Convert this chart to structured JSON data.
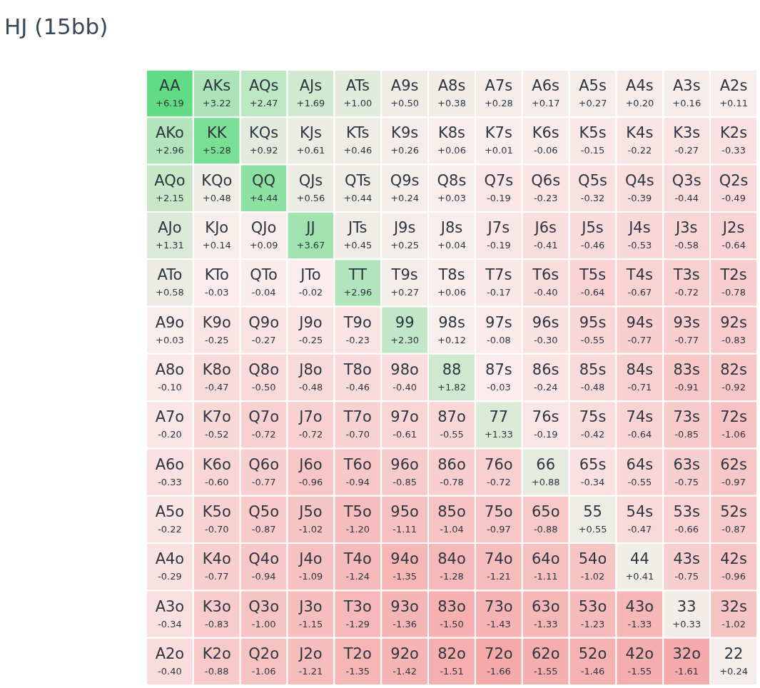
{
  "chart_data": {
    "type": "heatmap",
    "title": "HJ (15bb)",
    "categories": [
      null,
      null,
      null,
      null,
      null,
      null,
      null,
      null,
      null,
      null,
      null,
      null,
      null
    ],
    "y_categories": [
      null,
      null,
      null,
      null,
      null,
      null,
      null,
      null,
      null,
      null,
      null,
      null,
      null
    ],
    "cells": [
      [
        6.19,
        3.22,
        2.47,
        1.69,
        1.0,
        0.5,
        0.38,
        0.28,
        0.17,
        0.27,
        0.2,
        0.16,
        0.11
      ],
      [
        2.96,
        5.28,
        0.92,
        0.61,
        0.46,
        0.26,
        0.06,
        0.01,
        -0.06,
        -0.15,
        -0.22,
        -0.27,
        -0.33
      ],
      [
        2.15,
        0.48,
        4.44,
        0.56,
        0.44,
        0.24,
        0.03,
        -0.19,
        -0.23,
        -0.32,
        -0.39,
        -0.44,
        -0.49
      ],
      [
        1.31,
        0.14,
        0.09,
        3.67,
        0.45,
        0.25,
        0.04,
        -0.19,
        -0.41,
        -0.46,
        -0.53,
        -0.58,
        -0.64
      ],
      [
        0.58,
        -0.03,
        -0.04,
        -0.02,
        2.96,
        0.27,
        0.06,
        -0.17,
        -0.4,
        -0.64,
        -0.67,
        -0.72,
        -0.78
      ],
      [
        0.03,
        -0.25,
        -0.27,
        -0.25,
        -0.23,
        2.3,
        0.12,
        -0.08,
        -0.3,
        -0.55,
        -0.77,
        -0.77,
        -0.83
      ],
      [
        -0.1,
        -0.47,
        -0.5,
        -0.48,
        -0.46,
        -0.4,
        1.82,
        -0.03,
        -0.24,
        -0.48,
        -0.71,
        -0.91,
        -0.92
      ],
      [
        -0.2,
        -0.52,
        -0.72,
        -0.72,
        -0.7,
        -0.61,
        -0.55,
        1.33,
        -0.19,
        -0.42,
        -0.64,
        -0.85,
        -1.06
      ],
      [
        -0.33,
        -0.6,
        -0.77,
        -0.96,
        -0.94,
        -0.85,
        -0.78,
        -0.72,
        0.88,
        -0.34,
        -0.55,
        -0.75,
        -0.97
      ],
      [
        -0.22,
        -0.7,
        -0.87,
        -1.02,
        -1.2,
        -1.11,
        -1.04,
        -0.97,
        -0.88,
        0.55,
        -0.47,
        -0.66,
        -0.87
      ],
      [
        -0.29,
        -0.77,
        -0.94,
        -1.09,
        -1.24,
        -1.35,
        -1.28,
        -1.21,
        -1.11,
        -1.02,
        0.41,
        -0.75,
        -0.96
      ],
      [
        -0.34,
        -0.83,
        -1.0,
        -1.15,
        -1.29,
        -1.36,
        -1.5,
        -1.43,
        -1.33,
        -1.23,
        -1.33,
        0.33,
        -1.02
      ],
      [
        -0.4,
        -0.88,
        -1.06,
        -1.21,
        -1.35,
        -1.42,
        -1.51,
        -1.66,
        -1.55,
        -1.46,
        -1.55,
        -1.61,
        0.24
      ]
    ],
    "cell_labels": [
      [
        "+6.19",
        "+3.22",
        "+2.47",
        "+1.69",
        "+1.00",
        "+0.50",
        "+0.38",
        "+0.28",
        "+0.17",
        "+0.27",
        "+0.20",
        "+0.16",
        "+0.11"
      ],
      [
        "+2.96",
        "+5.28",
        "+0.92",
        "+0.61",
        "+0.46",
        "+0.26",
        "+0.06",
        "+0.01",
        "-0.06",
        "-0.15",
        "-0.22",
        "-0.27",
        "-0.33"
      ],
      [
        "+2.15",
        "+0.48",
        "+4.44",
        "+0.56",
        "+0.44",
        "+0.24",
        "+0.03",
        "-0.19",
        "-0.23",
        "-0.32",
        "-0.39",
        "-0.44",
        "-0.49"
      ],
      [
        "+1.31",
        "+0.14",
        "+0.09",
        "+3.67",
        "+0.45",
        "+0.25",
        "+0.04",
        "-0.19",
        "-0.41",
        "-0.46",
        "-0.53",
        "-0.58",
        "-0.64"
      ],
      [
        "+0.58",
        "-0.03",
        "-0.04",
        "-0.02",
        "+2.96",
        "+0.27",
        "+0.06",
        "-0.17",
        "-0.40",
        "-0.64",
        "-0.67",
        "-0.72",
        "-0.78"
      ],
      [
        "+0.03",
        "-0.25",
        "-0.27",
        "-0.25",
        "-0.23",
        "+2.30",
        "+0.12",
        "-0.08",
        "-0.30",
        "-0.55",
        "-0.77",
        "-0.77",
        "-0.83"
      ],
      [
        "-0.10",
        "-0.47",
        "-0.50",
        "-0.48",
        "-0.46",
        "-0.40",
        "+1.82",
        "-0.03",
        "-0.24",
        "-0.48",
        "-0.71",
        "-0.91",
        "-0.92"
      ],
      [
        "-0.20",
        "-0.52",
        "-0.72",
        "-0.72",
        "-0.70",
        "-0.61",
        "-0.55",
        "+1.33",
        "-0.19",
        "-0.42",
        "-0.64",
        "-0.85",
        "-1.06"
      ],
      [
        "-0.33",
        "-0.60",
        "-0.77",
        "-0.96",
        "-0.94",
        "-0.85",
        "-0.78",
        "-0.72",
        "+0.88",
        "-0.34",
        "-0.55",
        "-0.75",
        "-0.97"
      ],
      [
        "-0.22",
        "-0.70",
        "-0.87",
        "-1.02",
        "-1.20",
        "-1.11",
        "-1.04",
        "-0.97",
        "-0.88",
        "+0.55",
        "-0.47",
        "-0.66",
        "-0.87"
      ],
      [
        "-0.29",
        "-0.77",
        "-0.94",
        "-1.09",
        "-1.24",
        "-1.35",
        "-1.28",
        "-1.21",
        "-1.11",
        "-1.02",
        "+0.41",
        "-0.75",
        "-0.96"
      ],
      [
        "-0.34",
        "-0.83",
        "-1.00",
        "-1.15",
        "-1.29",
        "-1.36",
        "-1.50",
        "-1.43",
        "-1.33",
        "-1.23",
        "-1.33",
        "+0.33",
        "-1.02"
      ],
      [
        "-0.40",
        "-0.88",
        "-1.06",
        "-1.21",
        "-1.35",
        "-1.42",
        "-1.51",
        "-1.66",
        "-1.55",
        "-1.46",
        "-1.55",
        "-1.61",
        "+0.24"
      ]
    ],
    "annotations": [
      "AA",
      "AKs",
      "AQs",
      "AJs",
      "ATs",
      "A9s",
      "A8s",
      "A7s",
      "A6s",
      "A5s",
      "A4s",
      "A3s",
      "A2s",
      "AKo",
      "KK",
      "KQs",
      "KJs",
      "KTs",
      "K9s",
      "K8s",
      "K7s",
      "K6s",
      "K5s",
      "K4s",
      "K3s",
      "K2s",
      "AQo",
      "KQo",
      "QQ",
      "QJs",
      "QTs",
      "Q9s",
      "Q8s",
      "Q7s",
      "Q6s",
      "Q5s",
      "Q4s",
      "Q3s",
      "Q2s",
      "AJo",
      "KJo",
      "QJo",
      "JJ",
      "JTs",
      "J9s",
      "J8s",
      "J7s",
      "J6s",
      "J5s",
      "J4s",
      "J3s",
      "J2s",
      "ATo",
      "KTo",
      "QTo",
      "JTo",
      "TT",
      "T9s",
      "T8s",
      "T7s",
      "T6s",
      "T5s",
      "T4s",
      "T3s",
      "T2s",
      "A9o",
      "K9o",
      "Q9o",
      "J9o",
      "T9o",
      "99",
      "98s",
      "97s",
      "96s",
      "95s",
      "94s",
      "93s",
      "92s",
      "A8o",
      "K8o",
      "Q8o",
      "J8o",
      "T8o",
      "98o",
      "88",
      "87s",
      "86s",
      "85s",
      "84s",
      "83s",
      "82s",
      "A7o",
      "K7o",
      "Q7o",
      "J7o",
      "T7o",
      "97o",
      "87o",
      "77",
      "76s",
      "75s",
      "74s",
      "73s",
      "72s",
      "A6o",
      "K6o",
      "Q6o",
      "J6o",
      "T6o",
      "96o",
      "86o",
      "76o",
      "66",
      "65s",
      "64s",
      "63s",
      "62s",
      "A5o",
      "K5o",
      "Q5o",
      "J5o",
      "T5o",
      "95o",
      "85o",
      "75o",
      "65o",
      "55",
      "54s",
      "53s",
      "52s",
      "A4o",
      "K4o",
      "Q4o",
      "J4o",
      "T4o",
      "94o",
      "84o",
      "74o",
      "64o",
      "54o",
      "44",
      "43s",
      "42s",
      "A3o",
      "K3o",
      "Q3o",
      "J3o",
      "T3o",
      "93o",
      "83o",
      "73o",
      "63o",
      "53o",
      "43o",
      "33",
      "32s",
      "A2o",
      "K2o",
      "Q2o",
      "J2o",
      "T2o",
      "92o",
      "82o",
      "72o",
      "62o",
      "52o",
      "42o",
      "32o",
      "22"
    ]
  }
}
